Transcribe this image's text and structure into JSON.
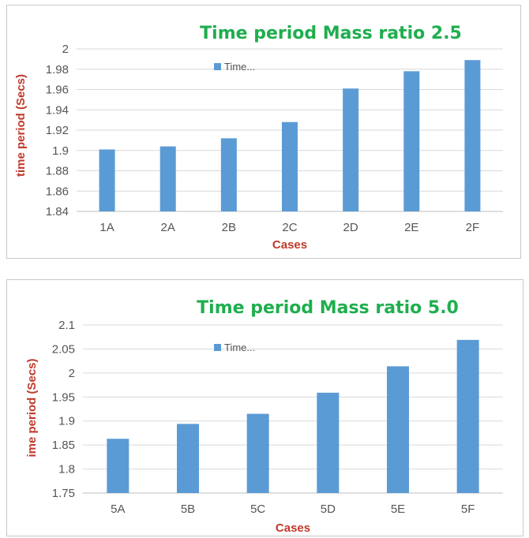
{
  "chart_data": [
    {
      "type": "bar",
      "title": "Time period Mass ratio 2.5",
      "xlabel": "Cases",
      "ylabel": "time period (Secs)",
      "categories": [
        "1A",
        "2A",
        "2B",
        "2C",
        "2D",
        "2E",
        "2F"
      ],
      "series": [
        {
          "name": "Time...",
          "values": [
            1.901,
            1.904,
            1.912,
            1.928,
            1.961,
            1.978,
            1.989
          ],
          "color": "#5b9bd5"
        }
      ],
      "ylim": [
        1.84,
        2.0
      ],
      "yticks": [
        "1.84",
        "1.86",
        "1.88",
        "1.9",
        "1.92",
        "1.94",
        "1.96",
        "1.98",
        "2"
      ],
      "grid": true,
      "legend": "top-center"
    },
    {
      "type": "bar",
      "title": "Time period Mass ratio 5.0",
      "xlabel": "Cases",
      "ylabel": "ime period (Secs)",
      "categories": [
        "5A",
        "5B",
        "5C",
        "5D",
        "5E",
        "5F"
      ],
      "series": [
        {
          "name": "Time...",
          "values": [
            1.863,
            1.894,
            1.915,
            1.959,
            2.014,
            2.069
          ],
          "color": "#5b9bd5"
        }
      ],
      "ylim": [
        1.75,
        2.1
      ],
      "yticks": [
        "1.75",
        "1.8",
        "1.85",
        "1.9",
        "1.95",
        "2",
        "2.05",
        "2.1"
      ],
      "grid": true,
      "legend": "top-center"
    }
  ]
}
